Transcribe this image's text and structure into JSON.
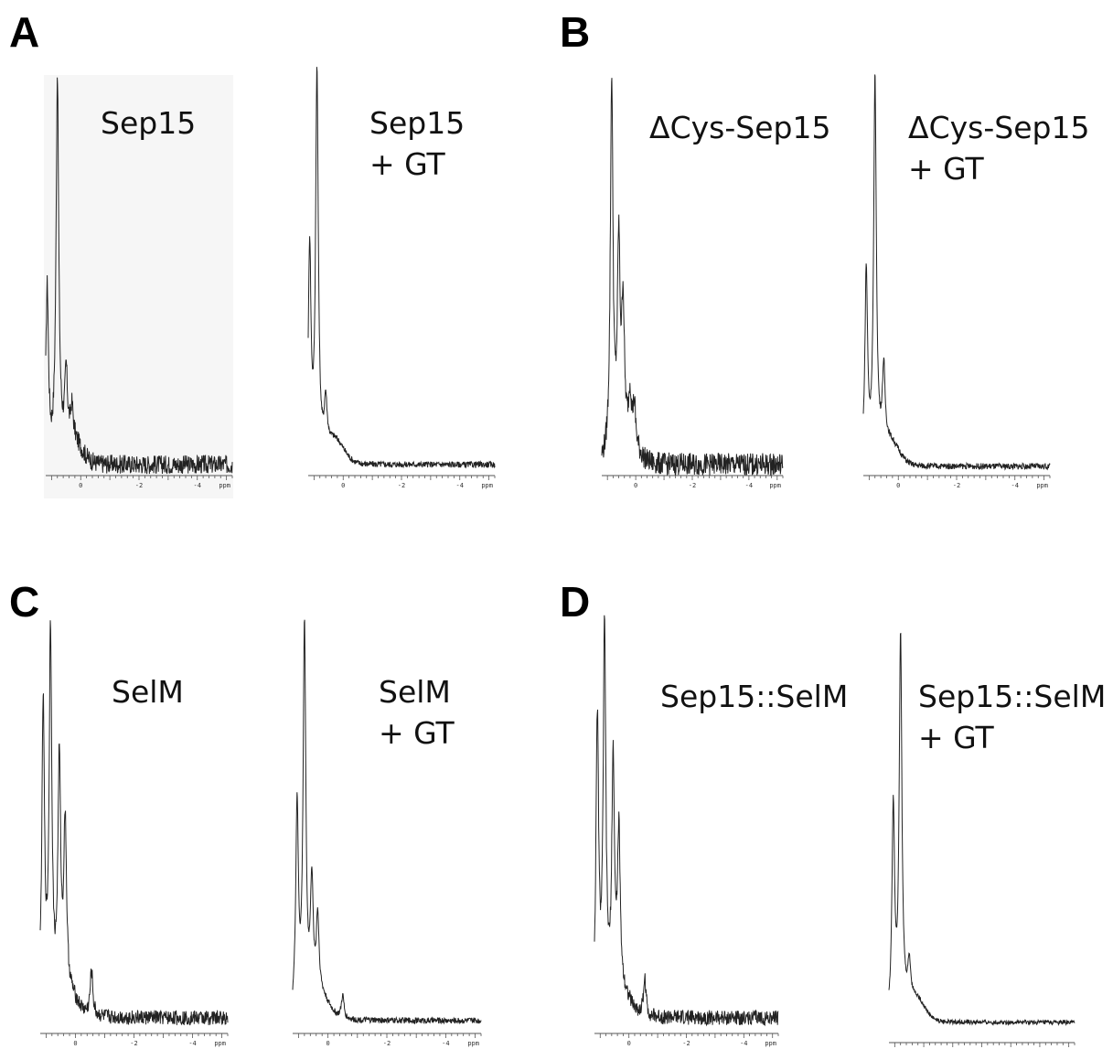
{
  "panels": [
    {
      "letter": "A"
    },
    {
      "letter": "B"
    },
    {
      "letter": "C"
    },
    {
      "letter": "D"
    }
  ],
  "chart_data": [
    {
      "type": "line",
      "panel": "A",
      "label_line1": "Sep15",
      "label_line2": "",
      "x_unit": "ppm",
      "xlim": [
        1.2,
        -5.2
      ],
      "x_reversed": true,
      "ticks": [
        0,
        -2,
        -4
      ],
      "peaks": [
        {
          "ppm": 0.8,
          "height": 1.0
        },
        {
          "ppm": 1.15,
          "height": 0.45
        },
        {
          "ppm": 0.5,
          "height": 0.18
        },
        {
          "ppm": 0.3,
          "height": 0.08
        }
      ],
      "noise": 0.025,
      "grid": false
    },
    {
      "type": "line",
      "panel": "A",
      "label_line1": "Sep15",
      "label_line2": "+ GT",
      "x_unit": "ppm",
      "xlim": [
        1.2,
        -5.2
      ],
      "x_reversed": true,
      "ticks": [
        0,
        -2,
        -4
      ],
      "peaks": [
        {
          "ppm": 0.9,
          "height": 1.0
        },
        {
          "ppm": 1.15,
          "height": 0.55
        },
        {
          "ppm": 0.6,
          "height": 0.12
        }
      ],
      "noise": 0.008,
      "grid": false
    },
    {
      "type": "line",
      "panel": "B",
      "label_line1": "ΔCys-Sep15",
      "label_line2": "",
      "x_unit": "ppm",
      "xlim": [
        1.2,
        -5.2
      ],
      "x_reversed": true,
      "ticks": [
        0,
        -2,
        -4
      ],
      "peaks": [
        {
          "ppm": 0.85,
          "height": 1.0
        },
        {
          "ppm": 0.6,
          "height": 0.52
        },
        {
          "ppm": 0.45,
          "height": 0.35
        },
        {
          "ppm": 0.2,
          "height": 0.12
        },
        {
          "ppm": 0.05,
          "height": 0.1
        }
      ],
      "noise": 0.03,
      "grid": false
    },
    {
      "type": "line",
      "panel": "B",
      "label_line1": "ΔCys-Sep15",
      "label_line2": "+ GT",
      "x_unit": "ppm",
      "xlim": [
        1.2,
        -5.2
      ],
      "x_reversed": true,
      "ticks": [
        0,
        -2,
        -4
      ],
      "peaks": [
        {
          "ppm": 0.8,
          "height": 1.0
        },
        {
          "ppm": 1.1,
          "height": 0.5
        },
        {
          "ppm": 0.5,
          "height": 0.2
        }
      ],
      "noise": 0.008,
      "grid": false
    },
    {
      "type": "line",
      "panel": "C",
      "label_line1": "SelM",
      "label_line2": "",
      "x_unit": "ppm",
      "xlim": [
        1.2,
        -5.2
      ],
      "x_reversed": true,
      "ticks": [
        0,
        -2,
        -4
      ],
      "peaks": [
        {
          "ppm": 0.85,
          "height": 1.0
        },
        {
          "ppm": 1.1,
          "height": 0.82
        },
        {
          "ppm": 0.55,
          "height": 0.62
        },
        {
          "ppm": 0.35,
          "height": 0.45
        },
        {
          "ppm": -0.55,
          "height": 0.12
        }
      ],
      "noise": 0.02,
      "grid": false
    },
    {
      "type": "line",
      "panel": "C",
      "label_line1": "SelM",
      "label_line2": "+ GT",
      "x_unit": "ppm",
      "xlim": [
        1.2,
        -5.2
      ],
      "x_reversed": true,
      "ticks": [
        0,
        -2,
        -4
      ],
      "peaks": [
        {
          "ppm": 0.8,
          "height": 1.0
        },
        {
          "ppm": 1.05,
          "height": 0.55
        },
        {
          "ppm": 0.55,
          "height": 0.3
        },
        {
          "ppm": 0.35,
          "height": 0.2
        },
        {
          "ppm": -0.5,
          "height": 0.06
        }
      ],
      "noise": 0.008,
      "grid": false
    },
    {
      "type": "line",
      "panel": "D",
      "label_line1": "Sep15::SelM",
      "label_line2": "",
      "x_unit": "ppm",
      "xlim": [
        1.2,
        -5.2
      ],
      "x_reversed": true,
      "ticks": [
        0,
        -2,
        -4
      ],
      "peaks": [
        {
          "ppm": 0.85,
          "height": 1.0
        },
        {
          "ppm": 1.1,
          "height": 0.78
        },
        {
          "ppm": 0.55,
          "height": 0.62
        },
        {
          "ppm": 0.35,
          "height": 0.42
        },
        {
          "ppm": -0.55,
          "height": 0.1
        }
      ],
      "noise": 0.02,
      "grid": false
    },
    {
      "type": "line",
      "panel": "D",
      "label_line1": "Sep15::SelM",
      "label_line2": "+ GT",
      "x_unit": "ppm",
      "xlim": [
        1.2,
        -5.2
      ],
      "x_reversed": true,
      "ticks": [
        0,
        -2,
        -4
      ],
      "peaks": [
        {
          "ppm": 0.8,
          "height": 1.0
        },
        {
          "ppm": 1.05,
          "height": 0.55
        },
        {
          "ppm": 0.5,
          "height": 0.1
        }
      ],
      "noise": 0.006,
      "grid": false
    }
  ]
}
